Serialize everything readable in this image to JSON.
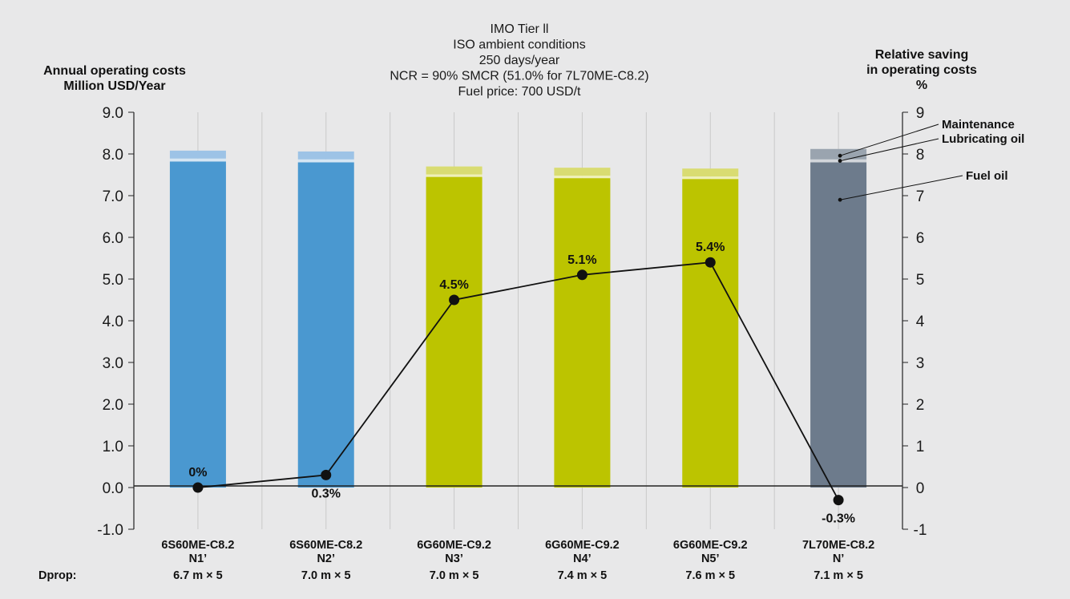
{
  "chart_data": {
    "type": "bar",
    "title_lines": [
      "IMO Tier ll",
      "ISO ambient conditions",
      "250 days/year",
      "NCR = 90% SMCR (51.0% for 7L70ME-C8.2)",
      "Fuel price: 700 USD/t"
    ],
    "ylabel_left": [
      "Annual operating costs",
      "Million USD/Year"
    ],
    "ylabel_right": [
      "Relative saving",
      "in operating costs",
      "%"
    ],
    "ylim_left": [
      -1,
      9
    ],
    "ylim_right": [
      -1,
      9
    ],
    "yticks_left": [
      "-1.0",
      "0.0",
      "1.0",
      "2.0",
      "3.0",
      "4.0",
      "5.0",
      "6.0",
      "7.0",
      "8.0",
      "9.0"
    ],
    "yticks_right": [
      "-1",
      "0",
      "1",
      "2",
      "3",
      "4",
      "5",
      "6",
      "7",
      "8",
      "9"
    ],
    "grid": "vertical",
    "categories": [
      {
        "engine": "6S60ME-C8.2",
        "case": "N1’",
        "prop": "6.7 m × 5"
      },
      {
        "engine": "6S60ME-C8.2",
        "case": "N2’",
        "prop": "7.0 m × 5"
      },
      {
        "engine": "6G60ME-C9.2",
        "case": "N3’",
        "prop": "7.0 m × 5"
      },
      {
        "engine": "6G60ME-C9.2",
        "case": "N4’",
        "prop": "7.4 m × 5"
      },
      {
        "engine": "6G60ME-C9.2",
        "case": "N5’",
        "prop": "7.6 m × 5"
      },
      {
        "engine": "7L70ME-C8.2",
        "case": "N’",
        "prop": "7.1 m × 5"
      }
    ],
    "prop_row_label": "Dprop:",
    "stack_series": [
      {
        "name": "Fuel oil",
        "values": [
          7.82,
          7.8,
          7.45,
          7.42,
          7.4,
          7.8
        ]
      },
      {
        "name": "Lubricating oil",
        "values": [
          0.07,
          0.07,
          0.06,
          0.06,
          0.06,
          0.07
        ]
      },
      {
        "name": "Maintenance",
        "values": [
          0.19,
          0.19,
          0.19,
          0.19,
          0.19,
          0.25
        ]
      }
    ],
    "bar_colors": [
      {
        "fuel": "#4a98d0",
        "lube": "#d5e6f3",
        "maint": "#9dc3e6"
      },
      {
        "fuel": "#4a98d0",
        "lube": "#d5e6f3",
        "maint": "#9dc3e6"
      },
      {
        "fuel": "#bcc400",
        "lube": "#eff0b8",
        "maint": "#d9dc72"
      },
      {
        "fuel": "#bcc400",
        "lube": "#eff0b8",
        "maint": "#d9dc72"
      },
      {
        "fuel": "#bcc400",
        "lube": "#eff0b8",
        "maint": "#d9dc72"
      },
      {
        "fuel": "#6d7b8c",
        "lube": "#d2d6db",
        "maint": "#9aa4af"
      }
    ],
    "line_series": {
      "name": "Relative saving",
      "values": [
        0,
        0.3,
        4.5,
        5.1,
        5.4,
        -0.3
      ],
      "labels": [
        "0%",
        "0.3%",
        "4.5%",
        "5.1%",
        "5.4%",
        "-0.3%"
      ],
      "label_positions": [
        "above",
        "below",
        "above",
        "above",
        "above",
        "below"
      ]
    },
    "legend": [
      "Maintenance",
      "Lubricating oil",
      "Fuel oil"
    ]
  }
}
